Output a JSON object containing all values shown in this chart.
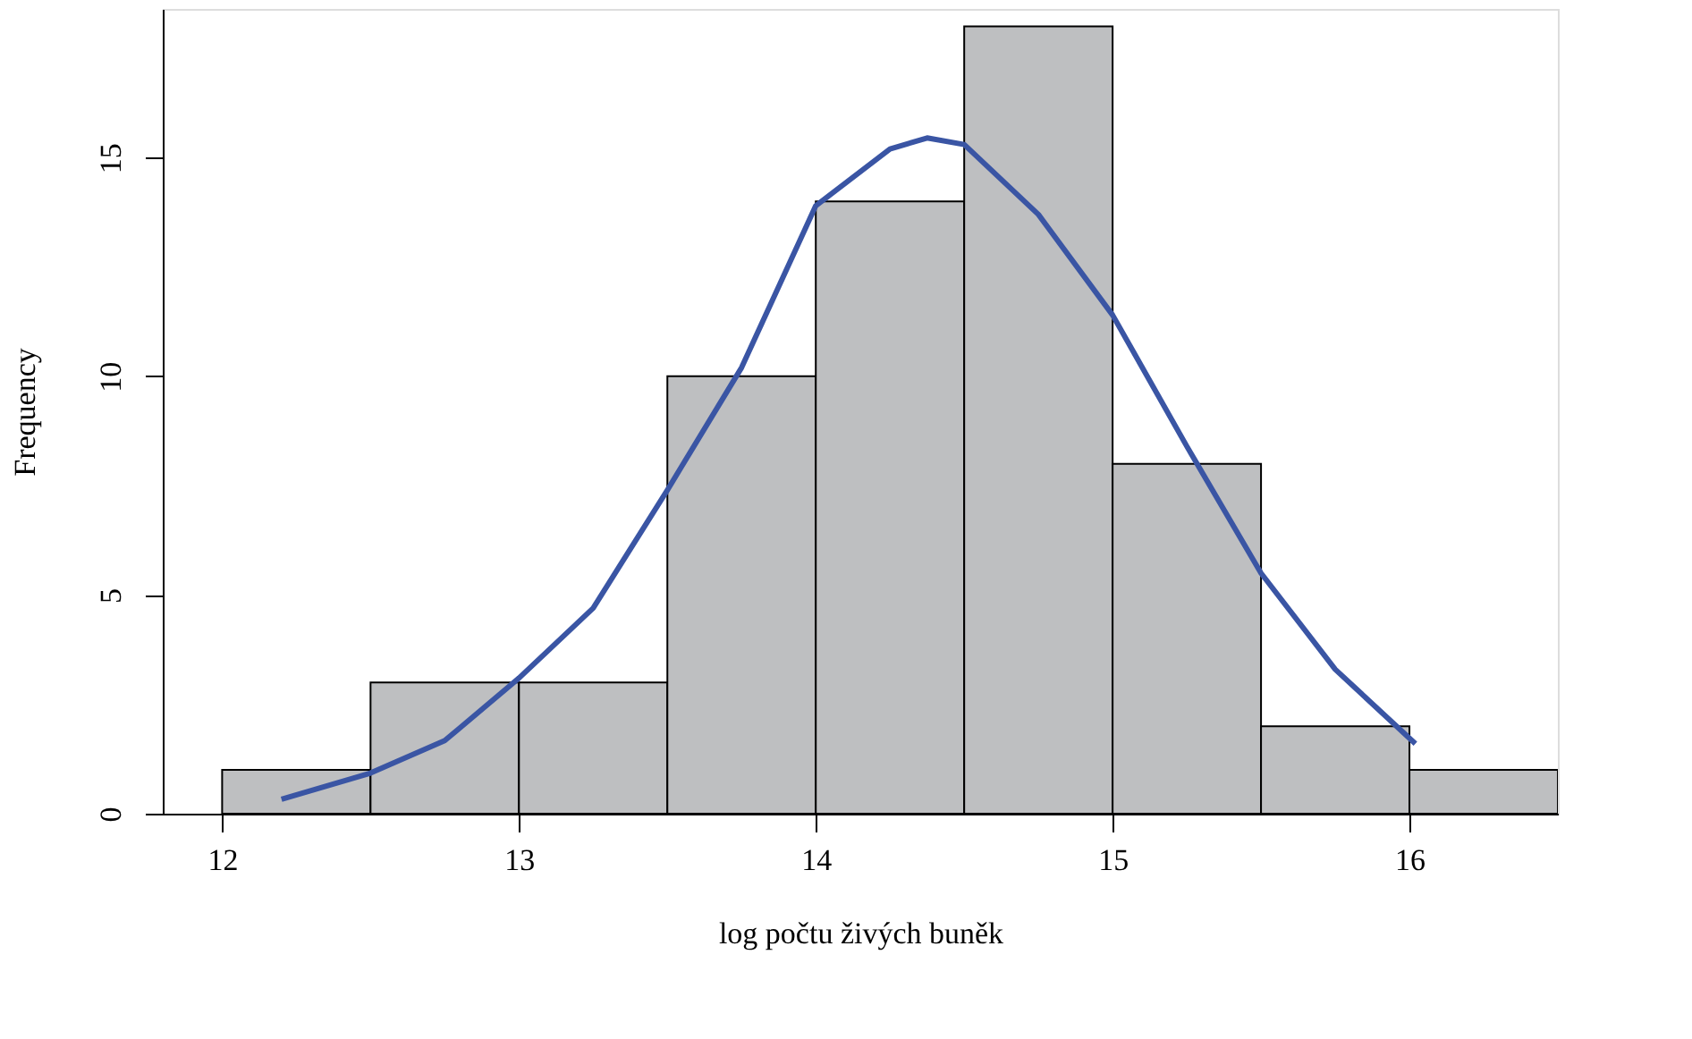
{
  "chart_data": {
    "type": "histogram",
    "xlabel": "log počtu živých buněk",
    "ylabel": "Frequency",
    "bins": [
      12,
      12.5,
      13,
      13.5,
      14,
      14.5,
      15,
      15.5,
      16,
      16.5
    ],
    "values": [
      1,
      3,
      3,
      10,
      14,
      18,
      8,
      2,
      1
    ],
    "color": "#bebfc1",
    "series": [
      {
        "type": "line",
        "color": "#3a55a4",
        "x": [
          12.2,
          12.5,
          12.75,
          13.0,
          13.25,
          13.5,
          13.75,
          14.0,
          14.25,
          14.375,
          14.5,
          14.75,
          15.0,
          15.25,
          15.5,
          15.75,
          16.02
        ],
        "values": [
          0.33,
          0.93,
          1.67,
          3.1,
          4.7,
          7.4,
          10.2,
          13.9,
          15.2,
          15.45,
          15.3,
          13.7,
          11.4,
          8.4,
          5.5,
          3.3,
          1.6
        ]
      }
    ],
    "xlim": [
      11.8,
      16.5
    ],
    "ylim": [
      0,
      18.4
    ],
    "xticks": [
      12,
      13,
      14,
      15,
      16
    ],
    "yticks": [
      0,
      5,
      10,
      15
    ],
    "grid": false
  }
}
